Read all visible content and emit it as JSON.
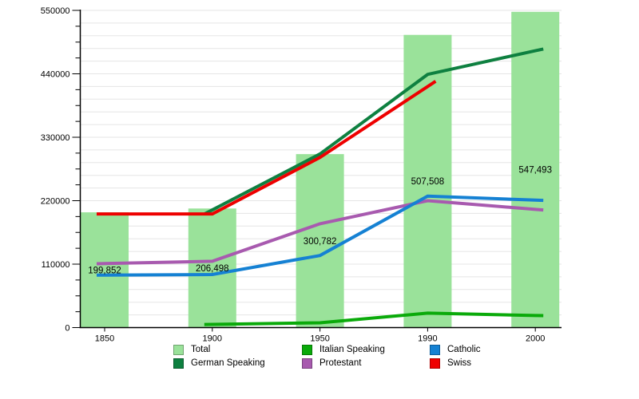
{
  "chart_data": {
    "type": "bar-line-combo",
    "title": "",
    "xlabel": "",
    "ylabel": "",
    "categories": [
      "1850",
      "1900",
      "1950",
      "1990",
      "2000"
    ],
    "series": [
      {
        "name": "Total",
        "type": "bar",
        "color": "#9AE29A",
        "values": [
          199852,
          206498,
          300782,
          507508,
          547493
        ],
        "value_labels": [
          "199,852",
          "206,498",
          "300,782",
          "507,508",
          "547,493"
        ]
      },
      {
        "name": "German Speaking",
        "type": "line",
        "color": "#0E8040",
        "values": [
          null,
          204000,
          301000,
          439000,
          480000
        ]
      },
      {
        "name": "Italian Speaking",
        "type": "line",
        "color": "#0AAA0A",
        "values": [
          null,
          5500,
          8300,
          25000,
          21000
        ]
      },
      {
        "name": "Protestant",
        "type": "line",
        "color": "#A85AAF",
        "values": [
          111000,
          115000,
          180000,
          220000,
          205000
        ]
      },
      {
        "name": "Catholic",
        "type": "line",
        "color": "#1581D3",
        "values": [
          91000,
          92000,
          125000,
          228000,
          221000
        ]
      },
      {
        "name": "Swiss",
        "type": "line",
        "color": "#EE0000",
        "values": [
          197000,
          197000,
          295000,
          418000,
          null
        ]
      }
    ],
    "y_axis": {
      "min": 0,
      "max": 550000,
      "tick_labels": [
        "0",
        "110000",
        "220000",
        "330000",
        "440000",
        "550000"
      ],
      "label_step": 110000,
      "minor_tick_step": 27500,
      "grid_step": 22000,
      "grid": "horizontal-only"
    },
    "x_axis": {
      "tick_labels": [
        "1850",
        "1900",
        "1950",
        "1990",
        "2000"
      ]
    },
    "legend_position": "bottom"
  },
  "legend": {
    "items": [
      {
        "label": "Total",
        "color": "#9AE29A"
      },
      {
        "label": "German Speaking",
        "color": "#0E8040"
      },
      {
        "label": "Italian Speaking",
        "color": "#0AAA0A"
      },
      {
        "label": "Protestant",
        "color": "#A85AAF"
      },
      {
        "label": "Catholic",
        "color": "#1581D3"
      },
      {
        "label": "Swiss",
        "color": "#EE0000"
      }
    ]
  }
}
